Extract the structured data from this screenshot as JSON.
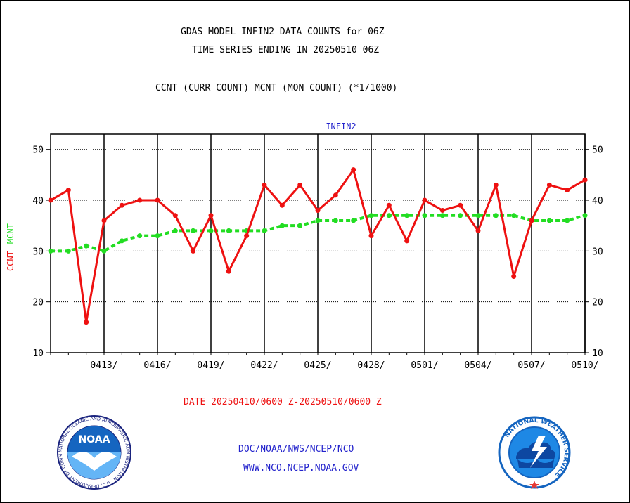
{
  "header": {
    "title_line1": "GDAS MODEL INFIN2 DATA COUNTS for 06Z",
    "title_line2": "TIME SERIES ENDING IN 20250510 06Z",
    "legend_line": "CCNT (CURR COUNT) MCNT (MON COUNT) (*1/1000)"
  },
  "footer": {
    "date_range": "DATE 20250410/0600 Z-20250510/0600 Z",
    "org": "DOC/NOAA/NWS/NCEP/NCO",
    "url": "WWW.NCO.NCEP.NOAA.GOV"
  },
  "logos": {
    "left_text": "NOAA",
    "left_ring_text": "NATIONAL OCEANIC AND ATMOSPHERIC ADMINISTRATION · U.S. DEPARTMENT OF COMMERCE",
    "right_ring_text": "NATIONAL WEATHER SERVICE"
  },
  "colors": {
    "ccnt": "#ee1111",
    "mcnt": "#22dd22",
    "accent_blue": "#2222cc",
    "date_red": "#ee1111"
  },
  "chart_data": {
    "type": "line",
    "title": "INFIN2",
    "ylabel_left": [
      "CCNT",
      "MCNT"
    ],
    "ylim": [
      10,
      53
    ],
    "yticks": [
      10,
      20,
      30,
      40,
      50
    ],
    "x_tick_labels": [
      "0413/",
      "0416/",
      "0419/",
      "0422/",
      "0425/",
      "0428/",
      "0501/",
      "0504/",
      "0507/",
      "0510/"
    ],
    "x": [
      "0410",
      "0411",
      "0412",
      "0413",
      "0414",
      "0415",
      "0416",
      "0417",
      "0418",
      "0419",
      "0420",
      "0421",
      "0422",
      "0423",
      "0424",
      "0425",
      "0426",
      "0427",
      "0428",
      "0429",
      "0430",
      "0501",
      "0502",
      "0503",
      "0504",
      "0505",
      "0506",
      "0507",
      "0508",
      "0509",
      "0510"
    ],
    "grid": true,
    "series": [
      {
        "name": "CCNT",
        "values": [
          40,
          42,
          16,
          36,
          39,
          40,
          40,
          37,
          30,
          37,
          26,
          33,
          43,
          39,
          43,
          38,
          41,
          46,
          33,
          39,
          32,
          40,
          38,
          39,
          34,
          43,
          25,
          36,
          43,
          42,
          44
        ]
      },
      {
        "name": "MCNT",
        "values": [
          30,
          30,
          31,
          30,
          32,
          33,
          33,
          34,
          34,
          34,
          34,
          34,
          34,
          35,
          35,
          36,
          36,
          36,
          37,
          37,
          37,
          37,
          37,
          37,
          37,
          37,
          37,
          36,
          36,
          36,
          37
        ]
      }
    ]
  }
}
